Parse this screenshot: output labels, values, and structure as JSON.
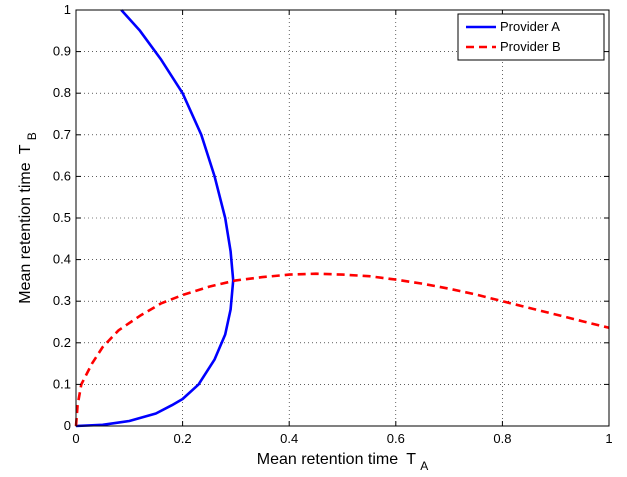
{
  "chart_data": {
    "type": "line",
    "title": "",
    "xlabel": "Mean retention time",
    "xlabel_sub": "A",
    "ylabel": "Mean retention time",
    "ylabel_sub": "B",
    "xlabel_prefix": "T",
    "ylabel_prefix": "T",
    "xlim": [
      0,
      1
    ],
    "ylim": [
      0,
      1
    ],
    "x_ticks": [
      0,
      0.2,
      0.4,
      0.6,
      0.8,
      1
    ],
    "x_tick_labels": [
      "0",
      "0.2",
      "0.4",
      "0.6",
      "0.8",
      "1"
    ],
    "y_ticks": [
      0,
      0.1,
      0.2,
      0.3,
      0.4,
      0.5,
      0.6,
      0.7,
      0.8,
      0.9,
      1
    ],
    "y_tick_labels": [
      "0",
      "0.1",
      "0.2",
      "0.3",
      "0.4",
      "0.5",
      "0.6",
      "0.7",
      "0.8",
      "0.9",
      "1"
    ],
    "grid": true,
    "legend_position": "top-right",
    "series": [
      {
        "name": "Provider A",
        "color": "#0000ff",
        "style": "solid",
        "points": [
          [
            0,
            0
          ],
          [
            0.05,
            0.003
          ],
          [
            0.1,
            0.012
          ],
          [
            0.15,
            0.03
          ],
          [
            0.18,
            0.05
          ],
          [
            0.2,
            0.065
          ],
          [
            0.23,
            0.1
          ],
          [
            0.26,
            0.16
          ],
          [
            0.28,
            0.22
          ],
          [
            0.29,
            0.28
          ],
          [
            0.295,
            0.35
          ],
          [
            0.29,
            0.42
          ],
          [
            0.28,
            0.5
          ],
          [
            0.26,
            0.6
          ],
          [
            0.235,
            0.7
          ],
          [
            0.2,
            0.8
          ],
          [
            0.16,
            0.88
          ],
          [
            0.12,
            0.95
          ],
          [
            0.085,
            1.0
          ]
        ]
      },
      {
        "name": "Provider B",
        "color": "#ff0000",
        "style": "dashed",
        "points": [
          [
            0,
            0
          ],
          [
            0.003,
            0.05
          ],
          [
            0.01,
            0.1
          ],
          [
            0.03,
            0.15
          ],
          [
            0.05,
            0.19
          ],
          [
            0.08,
            0.23
          ],
          [
            0.12,
            0.265
          ],
          [
            0.16,
            0.295
          ],
          [
            0.2,
            0.315
          ],
          [
            0.25,
            0.335
          ],
          [
            0.3,
            0.35
          ],
          [
            0.35,
            0.358
          ],
          [
            0.4,
            0.364
          ],
          [
            0.45,
            0.366
          ],
          [
            0.5,
            0.364
          ],
          [
            0.55,
            0.36
          ],
          [
            0.6,
            0.352
          ],
          [
            0.65,
            0.342
          ],
          [
            0.7,
            0.33
          ],
          [
            0.75,
            0.316
          ],
          [
            0.8,
            0.3
          ],
          [
            0.85,
            0.284
          ],
          [
            0.9,
            0.268
          ],
          [
            0.95,
            0.252
          ],
          [
            1.0,
            0.236
          ]
        ]
      }
    ]
  }
}
